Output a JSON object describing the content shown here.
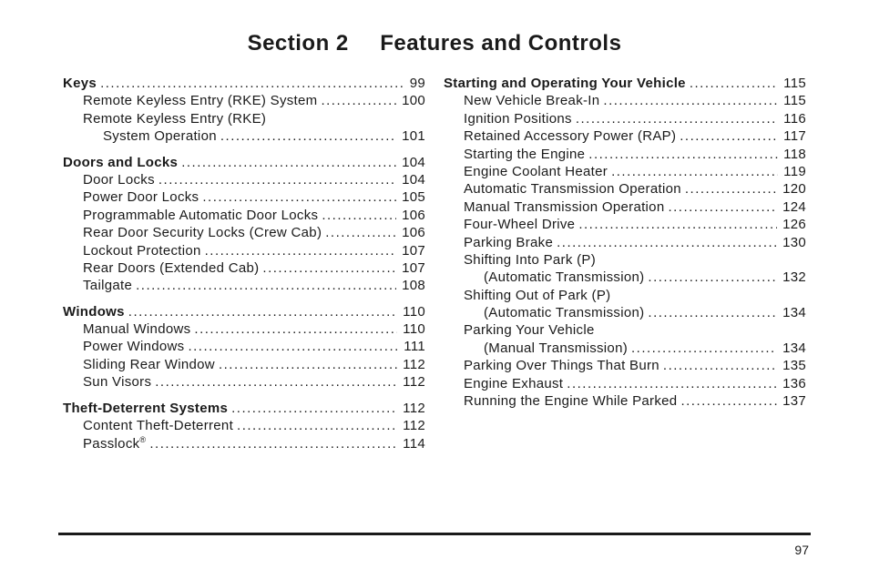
{
  "header": {
    "section": "Section  2",
    "title": "Features and Controls"
  },
  "pageNumber": "97",
  "leftColumn": [
    {
      "label": "Keys",
      "page": "99",
      "bold": true,
      "indent": 0
    },
    {
      "label": "Remote Keyless Entry (RKE) System",
      "page": "100",
      "bold": false,
      "indent": 1
    },
    {
      "label": "Remote Keyless Entry (RKE)",
      "page": "",
      "bold": false,
      "indent": 1,
      "noleader": true
    },
    {
      "label": "System Operation",
      "page": "101",
      "bold": false,
      "indent": 2
    },
    {
      "spacer": true
    },
    {
      "label": "Doors and Locks",
      "page": "104",
      "bold": true,
      "indent": 0
    },
    {
      "label": "Door Locks",
      "page": "104",
      "bold": false,
      "indent": 1
    },
    {
      "label": "Power Door Locks",
      "page": "105",
      "bold": false,
      "indent": 1
    },
    {
      "label": "Programmable Automatic Door Locks",
      "page": "106",
      "bold": false,
      "indent": 1
    },
    {
      "label": "Rear Door Security Locks (Crew Cab)",
      "page": "106",
      "bold": false,
      "indent": 1
    },
    {
      "label": "Lockout Protection",
      "page": "107",
      "bold": false,
      "indent": 1
    },
    {
      "label": "Rear Doors (Extended Cab)",
      "page": "107",
      "bold": false,
      "indent": 1
    },
    {
      "label": "Tailgate",
      "page": "108",
      "bold": false,
      "indent": 1
    },
    {
      "spacer": true
    },
    {
      "label": "Windows",
      "page": "110",
      "bold": true,
      "indent": 0
    },
    {
      "label": "Manual Windows",
      "page": "110",
      "bold": false,
      "indent": 1
    },
    {
      "label": "Power Windows",
      "page": "111",
      "bold": false,
      "indent": 1
    },
    {
      "label": "Sliding Rear Window",
      "page": "112",
      "bold": false,
      "indent": 1
    },
    {
      "label": "Sun Visors",
      "page": "112",
      "bold": false,
      "indent": 1
    },
    {
      "spacer": true
    },
    {
      "label": "Theft-Deterrent Systems",
      "page": "112",
      "bold": true,
      "indent": 0
    },
    {
      "label": "Content Theft-Deterrent",
      "page": "112",
      "bold": false,
      "indent": 1
    },
    {
      "label": "Passlock",
      "page": "114",
      "bold": false,
      "indent": 1,
      "sup": "®"
    }
  ],
  "rightColumn": [
    {
      "label": "Starting and Operating Your Vehicle",
      "page": "115",
      "bold": true,
      "indent": 0
    },
    {
      "label": "New Vehicle Break-In",
      "page": "115",
      "bold": false,
      "indent": 1
    },
    {
      "label": "Ignition Positions",
      "page": "116",
      "bold": false,
      "indent": 1
    },
    {
      "label": "Retained Accessory Power (RAP)",
      "page": "117",
      "bold": false,
      "indent": 1
    },
    {
      "label": "Starting the Engine",
      "page": "118",
      "bold": false,
      "indent": 1
    },
    {
      "label": "Engine Coolant Heater",
      "page": "119",
      "bold": false,
      "indent": 1
    },
    {
      "label": "Automatic Transmission Operation",
      "page": "120",
      "bold": false,
      "indent": 1
    },
    {
      "label": "Manual Transmission Operation",
      "page": "124",
      "bold": false,
      "indent": 1
    },
    {
      "label": "Four-Wheel Drive",
      "page": "126",
      "bold": false,
      "indent": 1
    },
    {
      "label": "Parking Brake",
      "page": "130",
      "bold": false,
      "indent": 1
    },
    {
      "label": "Shifting Into Park (P)",
      "page": "",
      "bold": false,
      "indent": 1,
      "noleader": true
    },
    {
      "label": "(Automatic Transmission)",
      "page": "132",
      "bold": false,
      "indent": 2
    },
    {
      "label": "Shifting Out of Park (P)",
      "page": "",
      "bold": false,
      "indent": 1,
      "noleader": true
    },
    {
      "label": "(Automatic Transmission)",
      "page": "134",
      "bold": false,
      "indent": 2
    },
    {
      "label": "Parking Your Vehicle",
      "page": "",
      "bold": false,
      "indent": 1,
      "noleader": true
    },
    {
      "label": "(Manual Transmission)",
      "page": "134",
      "bold": false,
      "indent": 2
    },
    {
      "label": "Parking Over Things That Burn",
      "page": "135",
      "bold": false,
      "indent": 1
    },
    {
      "label": "Engine Exhaust",
      "page": "136",
      "bold": false,
      "indent": 1
    },
    {
      "label": "Running the Engine While Parked",
      "page": "137",
      "bold": false,
      "indent": 1
    }
  ]
}
